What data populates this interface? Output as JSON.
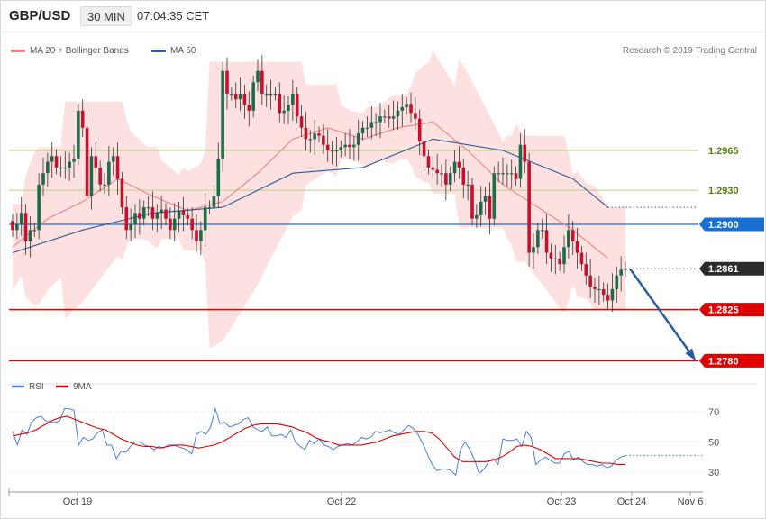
{
  "header": {
    "symbol": "GBP/USD",
    "timeframe": "30 MIN",
    "clock": "07:04:35 CET"
  },
  "legend": {
    "ma20_label": "MA 20 + Bollinger Bands",
    "ma20_color": "#f08080",
    "ma50_label": "MA 50",
    "ma50_color": "#2a5b9c"
  },
  "research_credit": "Research © 2019 Trading Central",
  "colors": {
    "bull": "#1e6b4a",
    "bear": "#c8102e",
    "band_fill": "#fde1e1",
    "support_line": "#e00000",
    "pivot_line": "#1a6fd6",
    "resistance_line": "#b7cf7f",
    "arrow": "#2a5b9c",
    "rsi_color": "#4a7fd6",
    "rsi_ma_color": "#e00000"
  },
  "icons": [
    "down-arrow-icon"
  ],
  "chart_data": [
    {
      "type": "candlestick",
      "title": "GBP/USD 30 MIN",
      "ylim": [
        1.274,
        1.311
      ],
      "x_ticks": [
        "Oct 19",
        "Oct 22",
        "Oct 23",
        "Oct 24",
        "Nov 6"
      ],
      "levels": [
        {
          "name": "resistance_2",
          "value": 1.2965,
          "label": "1.2965",
          "style": "resistance"
        },
        {
          "name": "resistance_1",
          "value": 1.293,
          "label": "1.2930",
          "style": "resistance"
        },
        {
          "name": "pivot",
          "value": 1.29,
          "label": "1.2900",
          "style": "pivot"
        },
        {
          "name": "last_price",
          "value": 1.2861,
          "label": "1.2861",
          "style": "current"
        },
        {
          "name": "support_1",
          "value": 1.2825,
          "label": "1.2825",
          "style": "support"
        },
        {
          "name": "support_2",
          "value": 1.278,
          "label": "1.2780",
          "style": "support"
        }
      ],
      "projection": {
        "from": 1.2861,
        "to": 1.278
      },
      "candles_close": [
        1.2895,
        1.29,
        1.291,
        1.2885,
        1.2895,
        1.2895,
        1.2935,
        1.2945,
        1.2955,
        1.296,
        1.295,
        1.295,
        1.295,
        1.2955,
        1.2958,
        1.3,
        1.2985,
        1.2925,
        1.296,
        1.295,
        1.2935,
        1.2935,
        1.2955,
        1.296,
        1.294,
        1.2915,
        1.2895,
        1.29,
        1.291,
        1.2905,
        1.2915,
        1.2915,
        1.2905,
        1.291,
        1.2913,
        1.2905,
        1.2895,
        1.2905,
        1.2912,
        1.2908,
        1.2905,
        1.2895,
        1.2885,
        1.2895,
        1.2915,
        1.2915,
        1.2925,
        1.2958,
        1.3035,
        1.3015,
        1.3015,
        1.301,
        1.3015,
        1.3005,
        1.3,
        1.3025,
        1.3035,
        1.3015,
        1.3015,
        1.3015,
        1.3015,
        1.2998,
        1.3,
        1.3005,
        1.3015,
        1.2995,
        1.2985,
        1.2975,
        1.2975,
        1.298,
        1.2978,
        1.297,
        1.2965,
        1.2965,
        1.2965,
        1.2968,
        1.297,
        1.2968,
        1.297,
        1.298,
        1.2985,
        1.2985,
        1.299,
        1.299,
        1.2995,
        1.2995,
        1.2993,
        1.2995,
        1.3,
        1.3003,
        1.3006,
        1.2998,
        1.2993,
        1.2973,
        1.296,
        1.295,
        1.2948,
        1.2945,
        1.2945,
        1.2935,
        1.2945,
        1.2955,
        1.295,
        1.2935,
        1.2935,
        1.2905,
        1.2908,
        1.292,
        1.2925,
        1.2905,
        1.2945,
        1.2945,
        1.2945,
        1.2945,
        1.2945,
        1.294,
        1.297,
        1.2955,
        1.2875,
        1.288,
        1.2895,
        1.2895,
        1.2875,
        1.287,
        1.287,
        1.2865,
        1.288,
        1.2895,
        1.2885,
        1.2875,
        1.2865,
        1.2855,
        1.2845,
        1.2843,
        1.2843,
        1.2838,
        1.2833,
        1.2843,
        1.2855,
        1.286,
        1.2861
      ],
      "ma20_approx": {
        "points": [
          [
            0,
            1.288
          ],
          [
            8,
            1.2905
          ],
          [
            16,
            1.292
          ],
          [
            24,
            1.294
          ],
          [
            32,
            1.2925
          ],
          [
            40,
            1.2912
          ],
          [
            48,
            1.292
          ],
          [
            56,
            1.2945
          ],
          [
            64,
            1.2975
          ],
          [
            72,
            1.2985
          ],
          [
            80,
            1.2975
          ],
          [
            88,
            1.2985
          ],
          [
            96,
            1.299
          ],
          [
            104,
            1.2965
          ],
          [
            112,
            1.2935
          ],
          [
            120,
            1.2915
          ],
          [
            128,
            1.2895
          ],
          [
            136,
            1.287
          ]
        ]
      },
      "ma50_approx": {
        "points": [
          [
            0,
            1.2875
          ],
          [
            16,
            1.2895
          ],
          [
            32,
            1.291
          ],
          [
            48,
            1.2915
          ],
          [
            64,
            1.2945
          ],
          [
            80,
            1.295
          ],
          [
            96,
            1.2975
          ],
          [
            112,
            1.2965
          ],
          [
            128,
            1.294
          ],
          [
            136,
            1.2915
          ]
        ]
      }
    },
    {
      "type": "line",
      "title": "RSI",
      "ylim": [
        20,
        80
      ],
      "yticks": [
        30,
        50,
        70
      ],
      "series": [
        {
          "name": "RSI",
          "values": [
            57,
            48,
            58,
            55,
            63,
            66,
            67,
            64,
            63,
            63,
            64,
            72,
            72,
            71,
            48,
            53,
            51,
            52,
            56,
            58,
            48,
            48,
            39,
            44,
            43,
            47,
            50,
            50,
            48,
            47,
            45,
            47,
            46,
            48,
            48,
            47,
            46,
            45,
            42,
            55,
            57,
            55,
            60,
            72,
            62,
            63,
            60,
            61,
            62,
            65,
            66,
            60,
            58,
            57,
            60,
            54,
            54,
            55,
            53,
            58,
            50,
            47,
            45,
            51,
            49,
            52,
            48,
            47,
            45,
            47,
            48,
            49,
            48,
            50,
            53,
            52,
            53,
            57,
            56,
            57,
            58,
            56,
            55,
            58,
            61,
            59,
            55,
            49,
            42,
            35,
            31,
            32,
            32,
            31,
            28,
            45,
            50,
            45,
            38,
            29,
            32,
            37,
            39,
            35,
            52,
            51,
            51,
            52,
            47,
            57,
            53,
            35,
            38,
            40,
            38,
            36,
            36,
            42,
            44,
            38,
            40,
            37,
            35,
            35,
            34,
            35,
            33,
            34,
            38,
            40,
            41
          ]
        },
        {
          "name": "9MA",
          "values": [
            54,
            55,
            56,
            58,
            61,
            64,
            66,
            67,
            65,
            63,
            61,
            59,
            58,
            55,
            52,
            50,
            48,
            47,
            47,
            46,
            47,
            48,
            48,
            47,
            46,
            47,
            48,
            50,
            53,
            56,
            59,
            61,
            62,
            62,
            62,
            61,
            60,
            58,
            56,
            53,
            51,
            50,
            48,
            48,
            48,
            48,
            49,
            50,
            52,
            54,
            55,
            56,
            57,
            57,
            56,
            52,
            46,
            40,
            37,
            37,
            37,
            37,
            38,
            40,
            43,
            47,
            48,
            47,
            45,
            42,
            39,
            39,
            39,
            39,
            38,
            37,
            36,
            36,
            35,
            35
          ]
        }
      ]
    }
  ]
}
